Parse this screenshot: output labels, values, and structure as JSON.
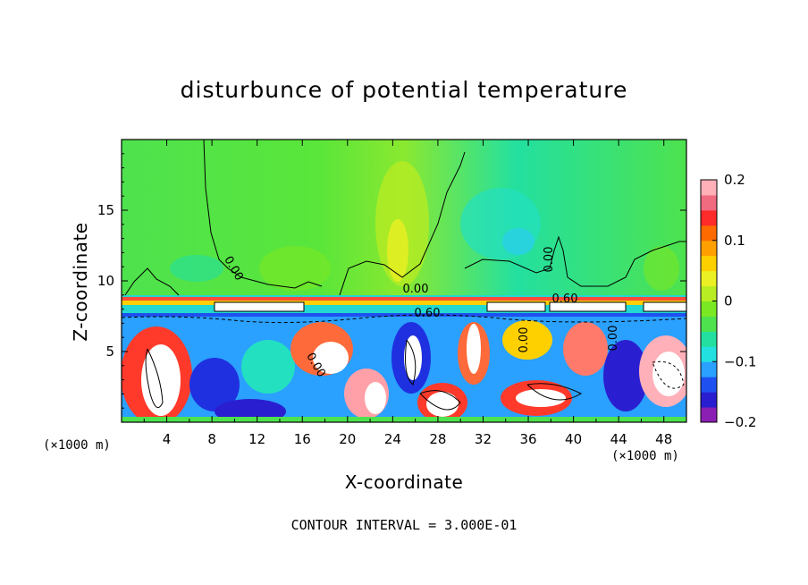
{
  "chart_data": {
    "type": "heatmap",
    "title": "disturbunce of potential temperature",
    "xlabel": "X-coordinate",
    "ylabel": "Z-coordinate",
    "x_unit_label": "(×1000 m)",
    "x_ticks": [
      4,
      8,
      12,
      16,
      20,
      24,
      28,
      32,
      36,
      40,
      44,
      48
    ],
    "y_ticks": [
      5,
      10,
      15
    ],
    "xlim": [
      0,
      50
    ],
    "ylim": [
      0,
      20
    ],
    "colorbar": {
      "ticks": [
        {
          "value": 0.2,
          "label": "0.2"
        },
        {
          "value": 0.1,
          "label": "0.1"
        },
        {
          "value": 0,
          "label": "0"
        },
        {
          "value": -0.1,
          "label": "−0.1"
        },
        {
          "value": -0.2,
          "label": "−0.2"
        }
      ],
      "range": [
        -0.2,
        0.2
      ],
      "colors": [
        "#8b1fb3",
        "#2a1fd0",
        "#1f50f0",
        "#2aa0ff",
        "#23e0e0",
        "#23e0a0",
        "#4ee24e",
        "#7ae823",
        "#b8ec23",
        "#eaf023",
        "#ffd000",
        "#ffa000",
        "#ff6a00",
        "#ff2a2a",
        "#f06a80",
        "#ffb0b8"
      ]
    },
    "contour_labels": [
      "0.00",
      "0.00",
      "0.00",
      "0.00",
      "0.60",
      "0.60",
      "0.00",
      "0.00"
    ],
    "footer": "CONTOUR INTERVAL = 3.000E-01"
  }
}
